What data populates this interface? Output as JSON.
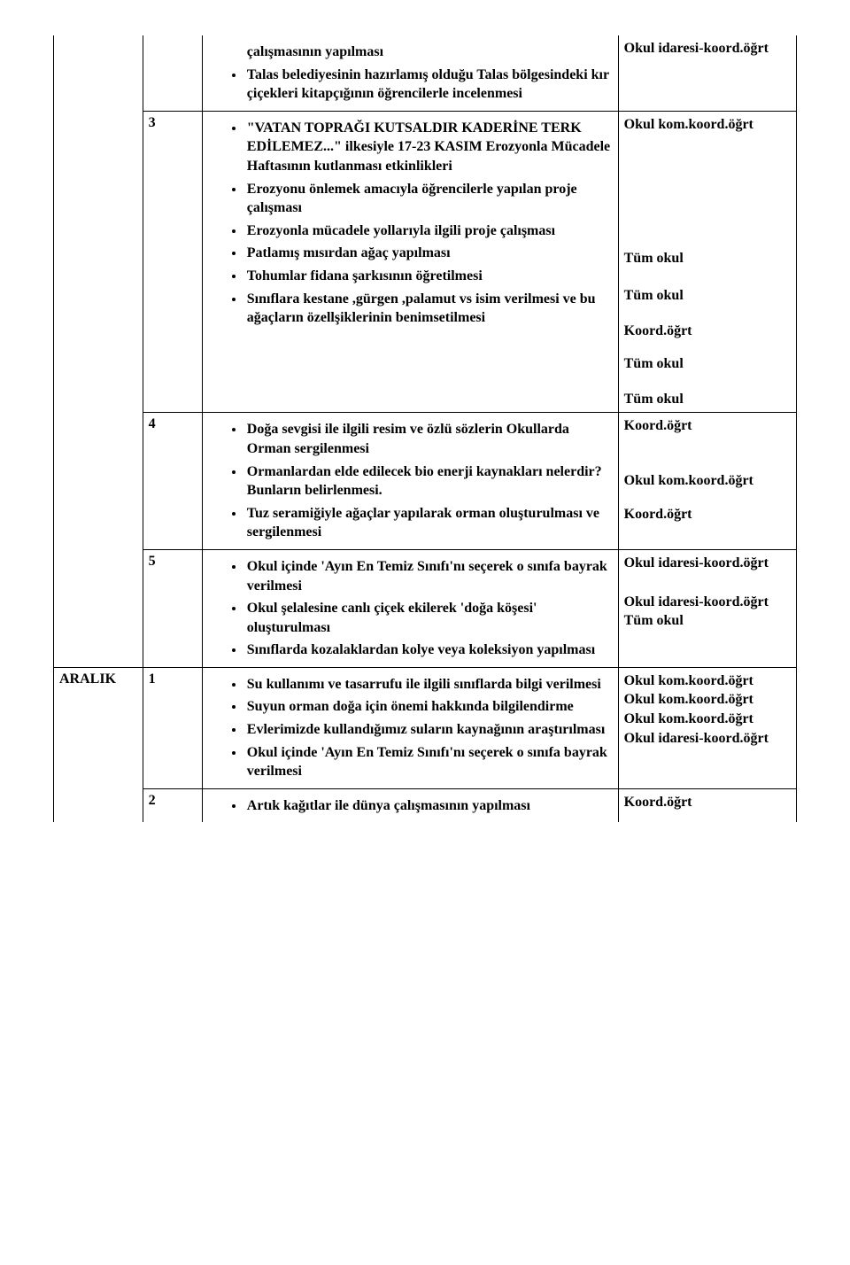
{
  "rows": [
    {
      "month": "",
      "week": "",
      "topBorder": false,
      "activities": [
        "çalışmasının yapılması",
        "Talas belediyesinin hazırlamış olduğu Talas bölgesindeki kır çiçekleri kitapçığının öğrencilerle incelenmesi"
      ],
      "firstItemNoBullet": true,
      "responsibles": [
        "Okul idaresi-koord.öğrt"
      ],
      "respSpacing": [
        28
      ]
    },
    {
      "month": "",
      "week": "3",
      "activities": [
        "\"VATAN TOPRAĞI KUTSALDIR KADERİNE TERK EDİLEMEZ...\" ilkesiyle 17-23 KASIM Erozyonla Mücadele Haftasının kutlanması etkinlikleri",
        " Erozyonu önlemek amacıyla öğrencilerle yapılan proje çalışması",
        "Erozyonla mücadele yollarıyla ilgili proje çalışması",
        "Patlamış mısırdan ağaç yapılması",
        "Tohumlar fidana şarkısının öğretilmesi",
        "Sınıflara kestane ,gürgen ,palamut vs isim verilmesi ve bu ağaçların özellşiklerinin benimsetilmesi"
      ],
      "responsibles": [
        "Okul kom.koord.öğrt",
        "Tüm okul",
        "Tüm okul",
        "Koord.öğrt",
        "Tüm okul",
        "Tüm okul"
      ],
      "respSpacing": [
        130,
        20,
        18,
        16,
        18,
        0
      ]
    },
    {
      "month": "",
      "week": "4",
      "activities": [
        "Doğa sevgisi ile ilgili resim ve özlü sözlerin Okullarda Orman sergilenmesi",
        "Ormanlardan elde edilecek bio enerji kaynakları nelerdir? Bunların belirlenmesi.",
        "Tuz seramiğiyle ağaçlar yapılarak orman oluşturulması ve sergilenmesi"
      ],
      "responsibles": [
        "Koord.öğrt",
        "Okul kom.koord.öğrt",
        "Koord.öğrt"
      ],
      "respSpacing": [
        40,
        16,
        0
      ]
    },
    {
      "month": "",
      "week": "5",
      "activities": [
        "Okul içinde 'Ayın En Temiz Sınıfı'nı seçerek o sınıfa bayrak verilmesi",
        "Okul şelalesine canlı çiçek ekilerek 'doğa köşesi' oluşturulması",
        "Sınıflarda kozalaklardan kolye veya koleksiyon yapılması"
      ],
      "responsibles": [
        "Okul idaresi-koord.öğrt",
        "Okul idaresi-koord.öğrt",
        "Tüm okul"
      ],
      "respSpacing": [
        22,
        0,
        0
      ]
    },
    {
      "month": "ARALIK",
      "week": "1",
      "activities": [
        "Su kullanımı ve tasarrufu ile ilgili sınıflarda bilgi verilmesi",
        "Suyun orman doğa için önemi hakkında bilgilendirme",
        "Evlerimizde kullandığımız suların kaynağının araştırılması",
        "Okul içinde 'Ayın En Temiz Sınıfı'nı seçerek o sınıfa bayrak verilmesi"
      ],
      "responsibles": [
        "Okul kom.koord.öğrt",
        "Okul kom.koord.öğrt",
        "Okul kom.koord.öğrt",
        "Okul idaresi-koord.öğrt"
      ],
      "respSpacing": [
        0,
        0,
        0,
        0
      ]
    },
    {
      "month": "",
      "week": "2",
      "bottomBorder": false,
      "activities": [
        "Artık kağıtlar ile dünya çalışmasının yapılması"
      ],
      "responsibles": [
        "Koord.öğrt"
      ],
      "respSpacing": [
        0
      ]
    }
  ]
}
